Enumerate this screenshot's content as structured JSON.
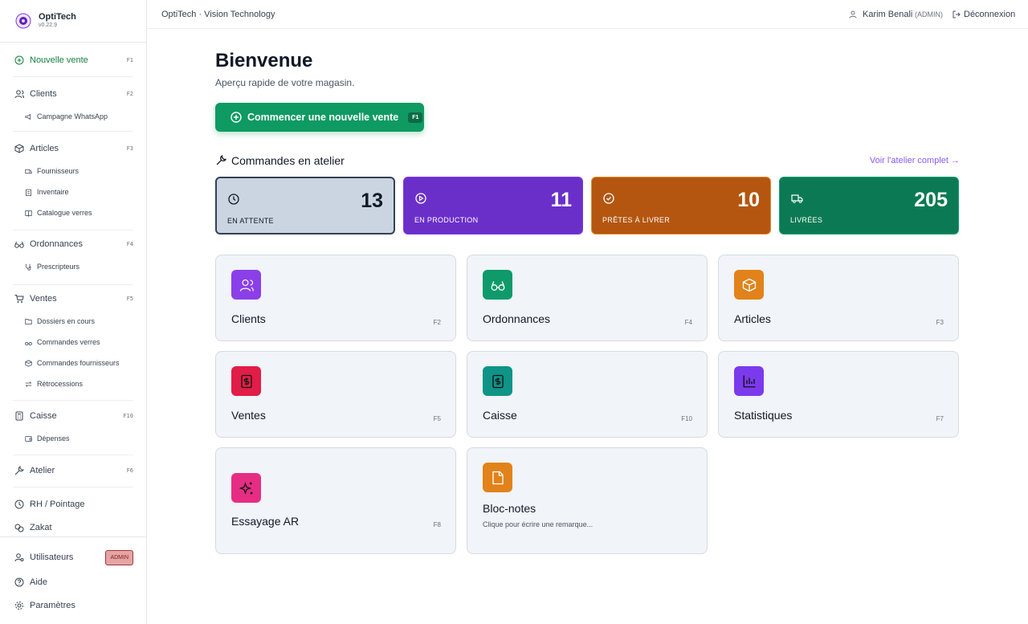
{
  "sidebar": {
    "brand": "OptiTech",
    "version": "v0.22.9",
    "nav": [
      {
        "label": "Nouvelle vente",
        "key": "F1"
      },
      {
        "label": "Clients",
        "key": "F2",
        "children": [
          "Campagne WhatsApp"
        ]
      },
      {
        "label": "Articles",
        "key": "F3",
        "children": [
          "Fournisseurs",
          "Inventaire",
          "Catalogue verres"
        ]
      },
      {
        "label": "Ordonnances",
        "key": "F4",
        "children": [
          "Prescripteurs"
        ]
      },
      {
        "label": "Ventes",
        "key": "F5",
        "children": [
          "Dossiers en cours",
          "Commandes verres",
          "Commandes fournisseurs",
          "Rétrocessions"
        ]
      },
      {
        "label": "Caisse",
        "key": "F10",
        "children": [
          "Dépenses"
        ]
      },
      {
        "label": "Atelier",
        "key": "F6"
      },
      {
        "label": "RH / Pointage"
      },
      {
        "label": "Zakat"
      }
    ],
    "footer": [
      {
        "label": "Utilisateurs",
        "badge": "ADMIN"
      },
      {
        "label": "Aide"
      },
      {
        "label": "Paramètres"
      }
    ]
  },
  "topbar": {
    "title": "OptiTech · Vision Technology",
    "user": "Karim Benali",
    "role": "(ADMIN)",
    "logout": "Déconnexion"
  },
  "main": {
    "title": "Bienvenue",
    "subtitle": "Aperçu rapide de votre magasin.",
    "cta": {
      "label": "Commencer une nouvelle vente",
      "key": "F1"
    },
    "workshop": {
      "title": "Commandes en atelier",
      "link": "Voir l'atelier complet →",
      "stats": [
        {
          "value": "13",
          "label": "EN ATTENTE"
        },
        {
          "value": "11",
          "label": "EN PRODUCTION"
        },
        {
          "value": "10",
          "label": "PRÊTES À LIVRER"
        },
        {
          "value": "205",
          "label": "LIVRÉES"
        }
      ]
    },
    "tiles": [
      {
        "label": "Clients",
        "key": "F2"
      },
      {
        "label": "Ordonnances",
        "key": "F4"
      },
      {
        "label": "Articles",
        "key": "F3"
      },
      {
        "label": "Ventes",
        "key": "F5"
      },
      {
        "label": "Caisse",
        "key": "F10"
      },
      {
        "label": "Statistiques",
        "key": "F7"
      },
      {
        "label": "Essayage AR",
        "key": "F8"
      },
      {
        "label": "Bloc-notes",
        "description": "Clique pour écrire une remarque..."
      }
    ]
  }
}
